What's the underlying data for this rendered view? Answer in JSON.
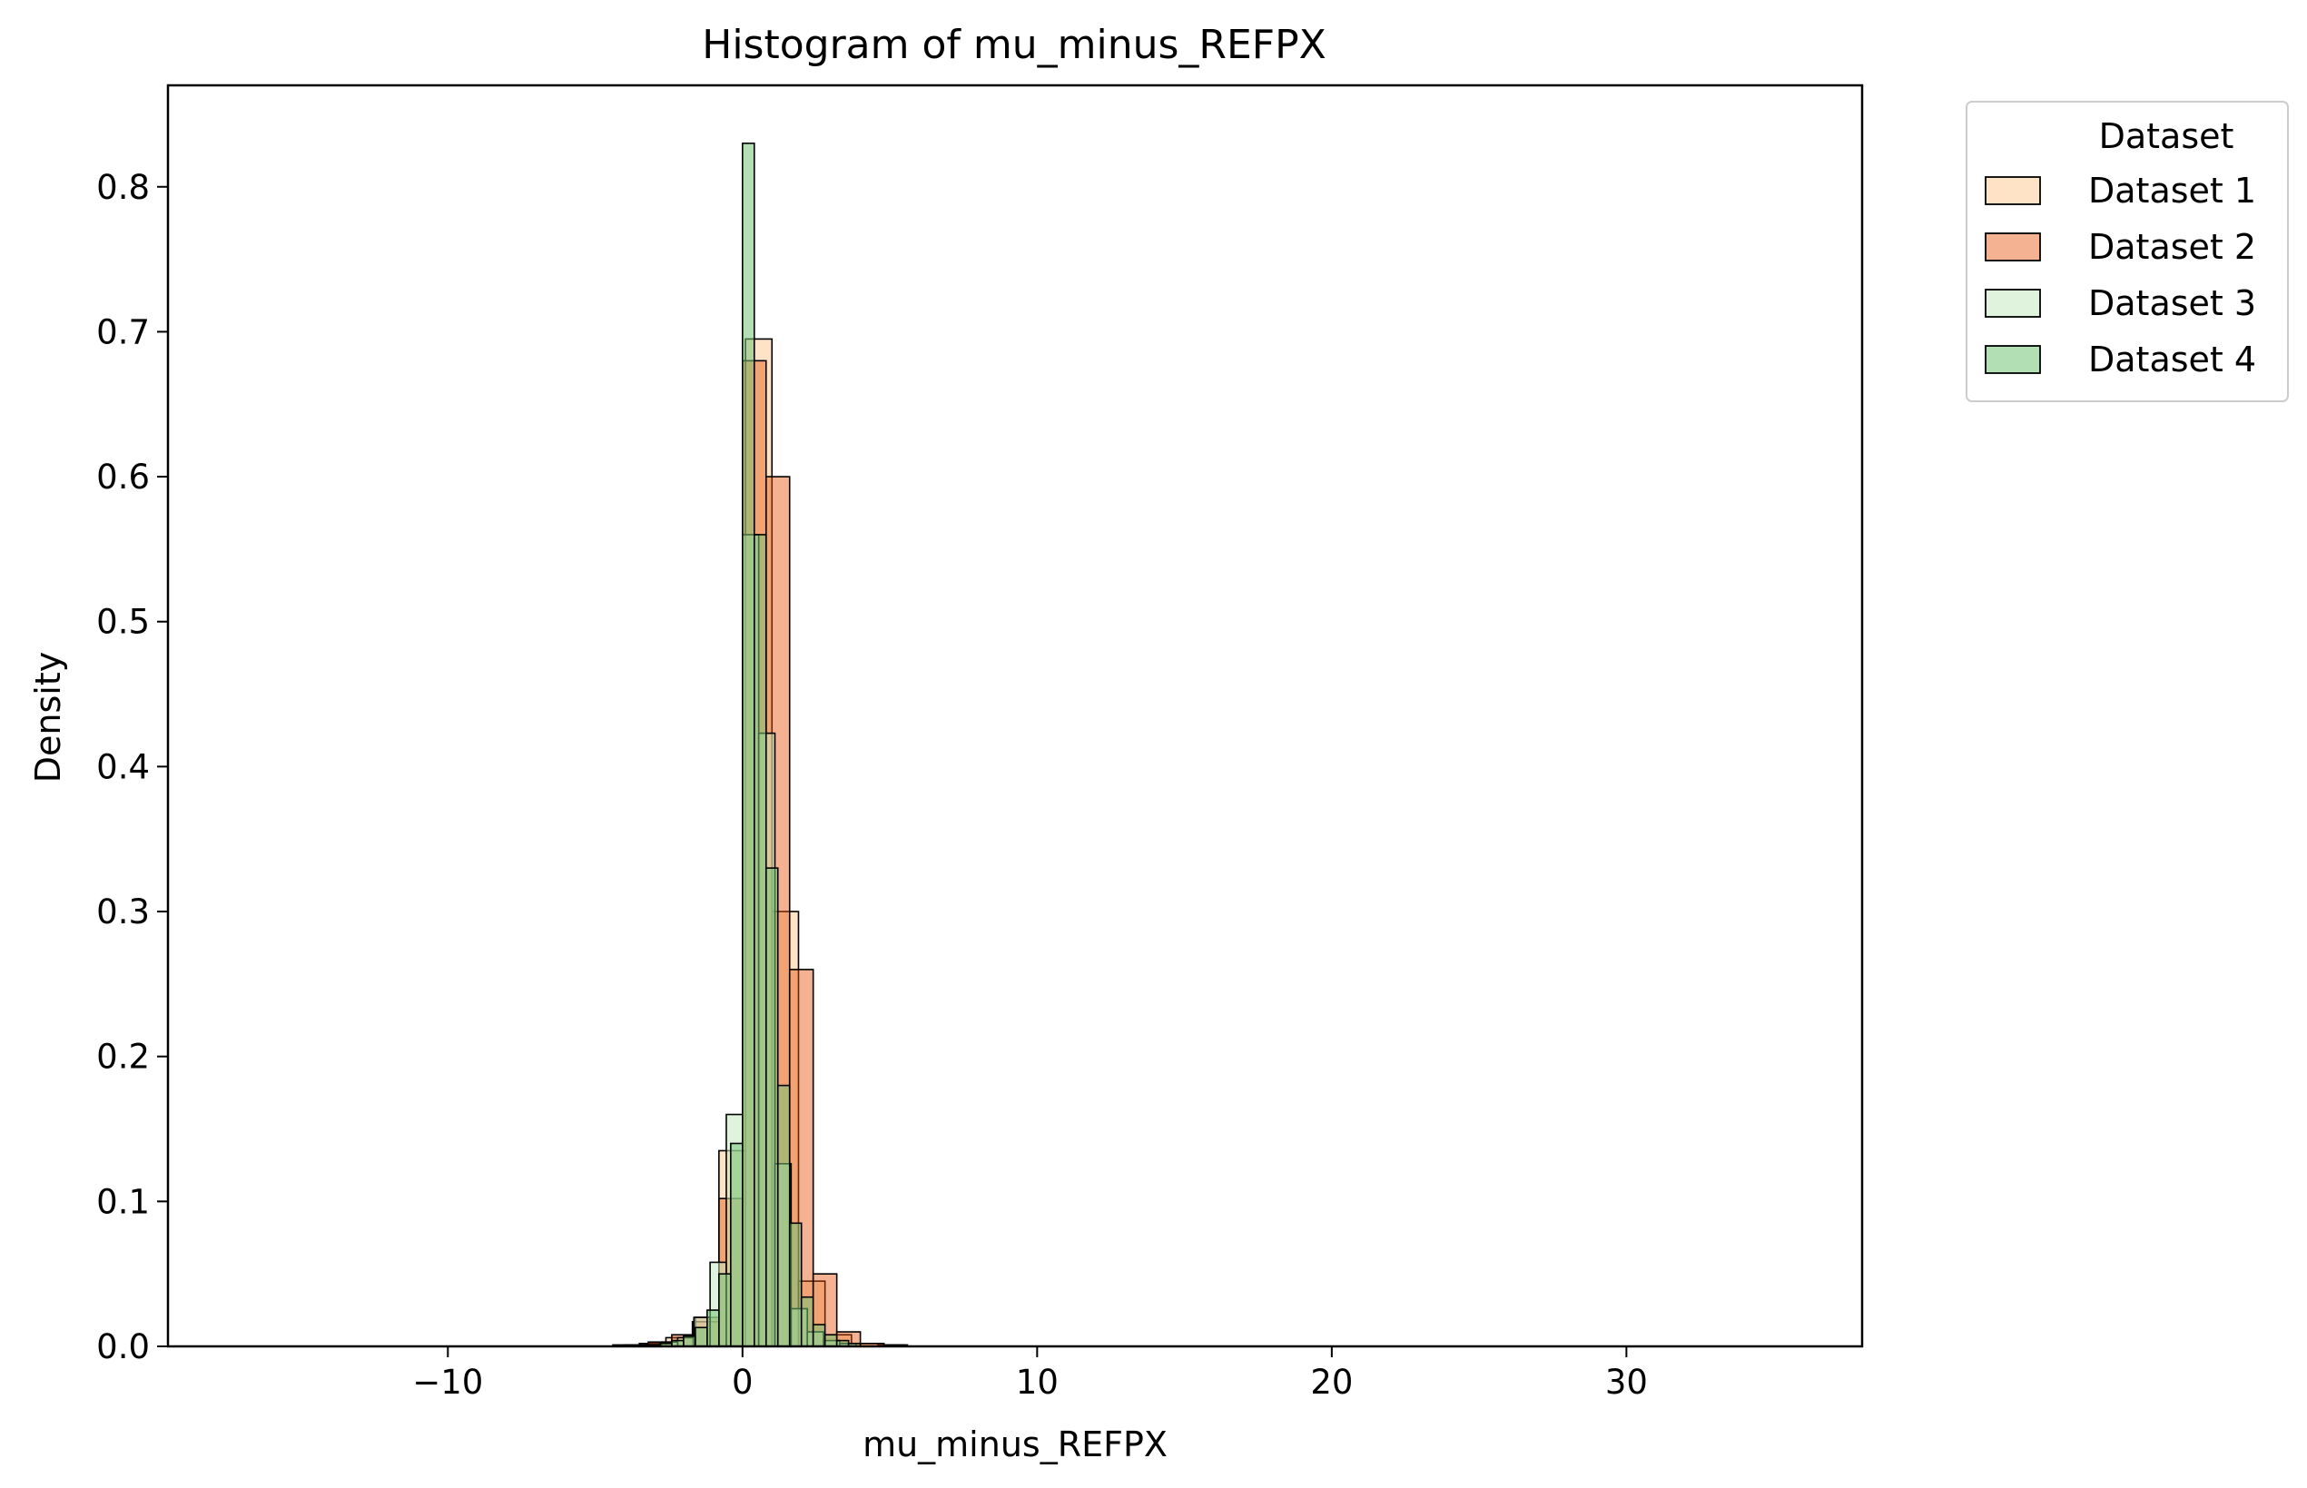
{
  "chart_data": {
    "type": "bar",
    "title": "Histogram of mu_minus_REFPX",
    "xlabel": "mu_minus_REFPX",
    "ylabel": "Density",
    "xlim": [
      -19.5,
      38
    ],
    "ylim": [
      0,
      0.87
    ],
    "xticks": [
      -10,
      0,
      10,
      20,
      30
    ],
    "xtick_labels": [
      "−10",
      "0",
      "10",
      "20",
      "30"
    ],
    "yticks": [
      0.0,
      0.1,
      0.2,
      0.3,
      0.4,
      0.5,
      0.6,
      0.7,
      0.8
    ],
    "ytick_labels": [
      "0.0",
      "0.1",
      "0.2",
      "0.3",
      "0.4",
      "0.5",
      "0.6",
      "0.7",
      "0.8"
    ],
    "grid": false,
    "legend": {
      "title": "Dataset",
      "placement": "outside-top-right"
    },
    "series": [
      {
        "name": "Dataset 1",
        "color": "#fdd0a2",
        "alpha": 0.6,
        "bin_width": 0.9,
        "bins": [
          [
            -4.4,
            0.001
          ],
          [
            -3.5,
            0.002
          ],
          [
            -2.6,
            0.006
          ],
          [
            -1.7,
            0.017
          ],
          [
            -0.8,
            0.135
          ],
          [
            0.1,
            0.695
          ],
          [
            1.0,
            0.3
          ],
          [
            1.9,
            0.045
          ],
          [
            2.8,
            0.008
          ],
          [
            3.7,
            0.002
          ],
          [
            4.6,
            0.001
          ]
        ]
      },
      {
        "name": "Dataset 2",
        "color": "#e6550d",
        "alpha": 0.45,
        "bin_width": 0.8,
        "bins": [
          [
            -4.0,
            0.001
          ],
          [
            -3.2,
            0.003
          ],
          [
            -2.4,
            0.008
          ],
          [
            -1.6,
            0.02
          ],
          [
            -0.8,
            0.102
          ],
          [
            0.0,
            0.68
          ],
          [
            0.8,
            0.6
          ],
          [
            1.6,
            0.26
          ],
          [
            2.4,
            0.05
          ],
          [
            3.2,
            0.01
          ],
          [
            4.0,
            0.002
          ],
          [
            4.8,
            0.001
          ]
        ]
      },
      {
        "name": "Dataset 3",
        "color": "#c7e9c0",
        "alpha": 0.55,
        "bin_width": 0.55,
        "bins": [
          [
            -3.3,
            0.001
          ],
          [
            -2.75,
            0.003
          ],
          [
            -2.2,
            0.006
          ],
          [
            -1.65,
            0.02
          ],
          [
            -1.1,
            0.058
          ],
          [
            -0.55,
            0.16
          ],
          [
            0.0,
            0.56
          ],
          [
            0.55,
            0.423
          ],
          [
            1.1,
            0.126
          ],
          [
            1.65,
            0.026
          ],
          [
            2.2,
            0.01
          ],
          [
            2.75,
            0.004
          ],
          [
            3.3,
            0.002
          ]
        ]
      },
      {
        "name": "Dataset 4",
        "color": "#74c476",
        "alpha": 0.55,
        "bin_width": 0.4,
        "bins": [
          [
            -3.2,
            0.001
          ],
          [
            -2.8,
            0.002
          ],
          [
            -2.4,
            0.004
          ],
          [
            -2.0,
            0.007
          ],
          [
            -1.6,
            0.013
          ],
          [
            -1.2,
            0.025
          ],
          [
            -0.8,
            0.05
          ],
          [
            -0.4,
            0.14
          ],
          [
            0.0,
            0.83
          ],
          [
            0.4,
            0.56
          ],
          [
            0.8,
            0.33
          ],
          [
            1.2,
            0.18
          ],
          [
            1.6,
            0.085
          ],
          [
            2.0,
            0.034
          ],
          [
            2.4,
            0.015
          ],
          [
            2.8,
            0.008
          ],
          [
            3.2,
            0.004
          ],
          [
            3.6,
            0.002
          ]
        ]
      }
    ]
  }
}
